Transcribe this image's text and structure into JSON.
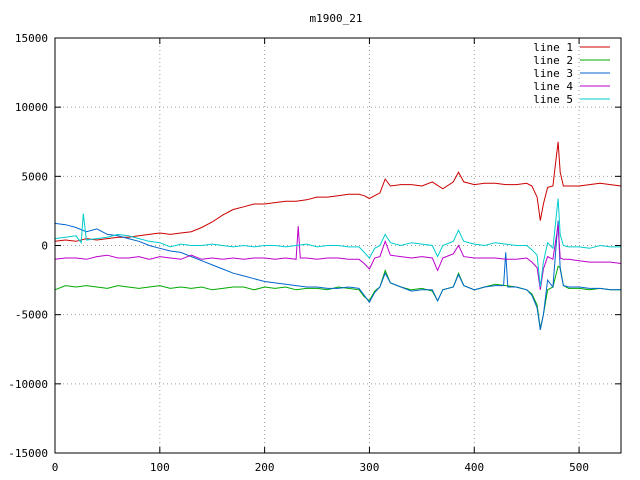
{
  "chart_data": {
    "type": "line",
    "title": "m1900_21",
    "xlabel": "",
    "ylabel": "",
    "xlim": [
      0,
      540
    ],
    "ylim": [
      -15000,
      15000
    ],
    "x_ticks": [
      0,
      100,
      200,
      300,
      400,
      500
    ],
    "y_ticks": [
      -15000,
      -10000,
      -5000,
      0,
      5000,
      10000,
      15000
    ],
    "grid": true,
    "legend_position": "top-right",
    "series": [
      {
        "name": "line 1",
        "color": "#cc0000",
        "x": [
          0,
          10,
          20,
          30,
          40,
          50,
          60,
          70,
          80,
          90,
          100,
          110,
          120,
          130,
          140,
          150,
          160,
          170,
          180,
          190,
          200,
          210,
          220,
          230,
          240,
          250,
          260,
          270,
          280,
          290,
          295,
          300,
          305,
          310,
          315,
          320,
          330,
          340,
          350,
          360,
          370,
          380,
          385,
          390,
          400,
          410,
          420,
          430,
          440,
          450,
          455,
          460,
          463,
          466,
          470,
          475,
          480,
          482,
          485,
          490,
          500,
          510,
          520,
          530,
          540
        ],
        "y": [
          300,
          400,
          300,
          500,
          400,
          500,
          600,
          600,
          700,
          800,
          900,
          800,
          900,
          1000,
          1300,
          1700,
          2200,
          2600,
          2800,
          3000,
          3000,
          3100,
          3200,
          3200,
          3300,
          3500,
          3500,
          3600,
          3700,
          3700,
          3600,
          3400,
          3600,
          3800,
          4800,
          4300,
          4400,
          4400,
          4300,
          4600,
          4100,
          4600,
          5300,
          4600,
          4400,
          4500,
          4500,
          4400,
          4400,
          4500,
          4300,
          3500,
          1800,
          3000,
          4200,
          4300,
          7500,
          5300,
          4300,
          4300,
          4300,
          4400,
          4500,
          4400,
          4300
        ]
      },
      {
        "name": "line 2",
        "color": "#00aa00",
        "x": [
          0,
          10,
          20,
          30,
          40,
          50,
          60,
          70,
          80,
          90,
          100,
          110,
          120,
          130,
          140,
          150,
          160,
          170,
          180,
          190,
          200,
          210,
          220,
          230,
          240,
          250,
          260,
          270,
          280,
          290,
          295,
          300,
          305,
          310,
          315,
          320,
          330,
          340,
          350,
          360,
          365,
          370,
          380,
          385,
          390,
          400,
          410,
          420,
          430,
          440,
          450,
          455,
          460,
          463,
          466,
          470,
          475,
          480,
          482,
          485,
          490,
          500,
          510,
          520,
          530,
          540
        ],
        "y": [
          -3200,
          -2900,
          -3000,
          -2900,
          -3000,
          -3100,
          -2900,
          -3000,
          -3100,
          -3000,
          -2900,
          -3100,
          -3000,
          -3100,
          -3000,
          -3200,
          -3100,
          -3000,
          -3000,
          -3200,
          -3000,
          -3100,
          -3000,
          -3200,
          -3100,
          -3100,
          -3200,
          -3000,
          -3100,
          -3200,
          -3700,
          -4000,
          -3300,
          -3000,
          -1800,
          -2700,
          -3000,
          -3200,
          -3100,
          -3300,
          -4000,
          -3200,
          -3000,
          -2000,
          -2900,
          -3200,
          -3000,
          -2800,
          -2900,
          -3000,
          -3200,
          -3500,
          -4300,
          -6000,
          -5000,
          -3200,
          -3000,
          -1500,
          -1600,
          -2900,
          -3100,
          -3100,
          -3200,
          -3100,
          -3200,
          -3200
        ]
      },
      {
        "name": "line 3",
        "color": "#0066cc",
        "x": [
          0,
          10,
          20,
          30,
          40,
          50,
          60,
          70,
          80,
          90,
          100,
          110,
          120,
          130,
          140,
          150,
          160,
          170,
          180,
          190,
          200,
          210,
          220,
          230,
          240,
          250,
          260,
          270,
          280,
          290,
          295,
          300,
          305,
          310,
          315,
          320,
          330,
          340,
          350,
          360,
          365,
          370,
          380,
          385,
          390,
          400,
          410,
          420,
          428,
          430,
          432,
          440,
          450,
          455,
          460,
          463,
          466,
          470,
          475,
          480,
          482,
          485,
          490,
          500,
          510,
          520,
          530,
          540
        ],
        "y": [
          1600,
          1500,
          1300,
          1000,
          1200,
          800,
          700,
          500,
          300,
          0,
          -200,
          -400,
          -500,
          -800,
          -1100,
          -1400,
          -1700,
          -2000,
          -2200,
          -2400,
          -2600,
          -2700,
          -2800,
          -2900,
          -3000,
          -3000,
          -3100,
          -3100,
          -3000,
          -3100,
          -3600,
          -4100,
          -3400,
          -3000,
          -2000,
          -2700,
          -3000,
          -3300,
          -3200,
          -3200,
          -4000,
          -3200,
          -3000,
          -2100,
          -2900,
          -3200,
          -3000,
          -2900,
          -2900,
          -500,
          -3000,
          -3000,
          -3200,
          -3600,
          -4500,
          -6100,
          -5000,
          -2500,
          -3000,
          1800,
          -1700,
          -2900,
          -3000,
          -3000,
          -3100,
          -3100,
          -3200,
          -3200
        ]
      },
      {
        "name": "line 4",
        "color": "#bb00cc",
        "x": [
          0,
          10,
          20,
          30,
          40,
          50,
          60,
          70,
          80,
          90,
          100,
          110,
          120,
          130,
          140,
          150,
          160,
          170,
          180,
          190,
          200,
          210,
          220,
          230,
          232,
          234,
          240,
          250,
          260,
          270,
          280,
          290,
          295,
          300,
          305,
          310,
          315,
          320,
          330,
          340,
          350,
          360,
          365,
          370,
          380,
          385,
          390,
          400,
          410,
          420,
          430,
          440,
          450,
          455,
          460,
          463,
          466,
          470,
          475,
          480,
          482,
          485,
          490,
          500,
          510,
          520,
          530,
          540
        ],
        "y": [
          -1000,
          -900,
          -900,
          -1000,
          -800,
          -700,
          -900,
          -900,
          -800,
          -1000,
          -800,
          -900,
          -1000,
          -700,
          -1000,
          -900,
          -1000,
          -900,
          -1000,
          -900,
          -900,
          -1000,
          -900,
          -1000,
          1400,
          -900,
          -900,
          -1000,
          -900,
          -900,
          -1000,
          -1000,
          -1300,
          -1700,
          -900,
          -800,
          300,
          -700,
          -800,
          -900,
          -800,
          -900,
          -1800,
          -900,
          -600,
          0,
          -800,
          -900,
          -900,
          -900,
          -1000,
          -1000,
          -900,
          -1200,
          -1600,
          -3200,
          -1700,
          -800,
          -1000,
          1500,
          -900,
          -1000,
          -1000,
          -1100,
          -1200,
          -1200,
          -1200,
          -1300
        ]
      },
      {
        "name": "line 5",
        "color": "#00cccc",
        "x": [
          0,
          10,
          20,
          25,
          27,
          30,
          40,
          50,
          60,
          70,
          80,
          90,
          100,
          110,
          120,
          130,
          140,
          150,
          160,
          170,
          180,
          190,
          200,
          210,
          220,
          230,
          240,
          250,
          260,
          270,
          280,
          290,
          295,
          300,
          305,
          310,
          315,
          320,
          330,
          340,
          350,
          360,
          365,
          370,
          380,
          385,
          390,
          400,
          410,
          420,
          430,
          440,
          450,
          455,
          460,
          463,
          466,
          470,
          475,
          480,
          482,
          485,
          490,
          500,
          510,
          520,
          530,
          540
        ],
        "y": [
          500,
          600,
          700,
          200,
          2300,
          400,
          500,
          600,
          800,
          700,
          500,
          300,
          200,
          -100,
          100,
          0,
          0,
          100,
          0,
          -100,
          0,
          -100,
          0,
          0,
          -100,
          0,
          100,
          -100,
          0,
          0,
          -100,
          -100,
          -500,
          -900,
          -200,
          0,
          800,
          200,
          0,
          200,
          100,
          0,
          -800,
          0,
          300,
          1100,
          300,
          100,
          0,
          200,
          100,
          0,
          0,
          -300,
          -700,
          -3000,
          -1200,
          200,
          -200,
          3400,
          800,
          0,
          -100,
          -100,
          -200,
          0,
          -100,
          -100
        ]
      }
    ]
  }
}
